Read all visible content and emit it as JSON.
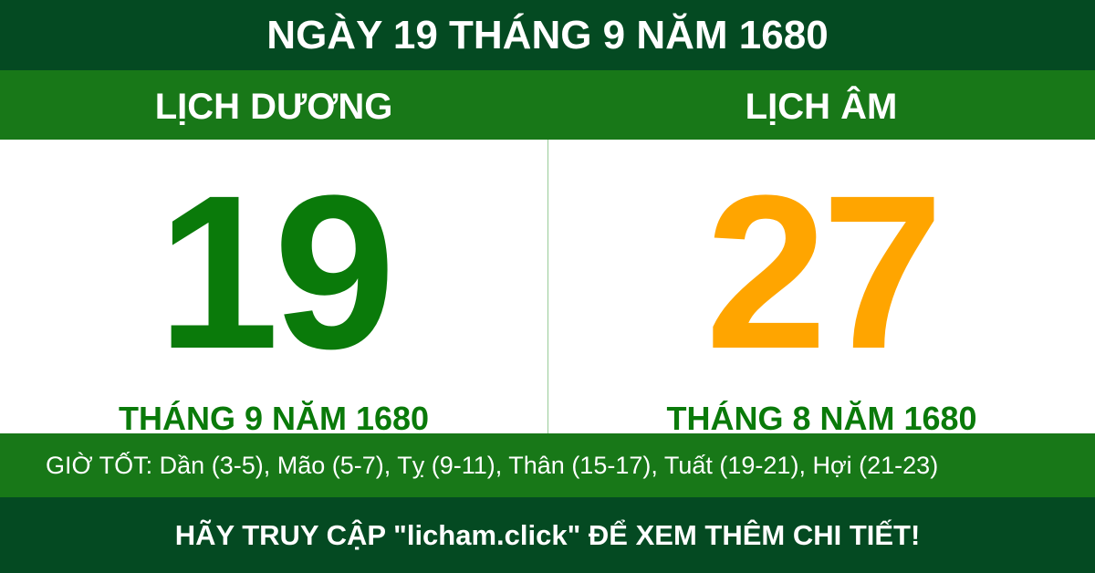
{
  "header": {
    "title": "NGÀY 19 THÁNG 9 NĂM 1680"
  },
  "solar": {
    "label": "LỊCH DƯƠNG",
    "day": "19",
    "month_year": "THÁNG 9 NĂM 1680"
  },
  "lunar": {
    "label": "LỊCH ÂM",
    "day": "27",
    "month_year": "THÁNG 8 NĂM 1680"
  },
  "good_hours": "GIỜ TỐT: Dần (3-5), Mão (5-7), Tỵ (9-11), Thân (15-17), Tuất (19-21), Hợi (21-23)",
  "footer": "HÃY TRUY CẬP \"licham.click\" ĐỂ XEM THÊM CHI TIẾT!"
}
